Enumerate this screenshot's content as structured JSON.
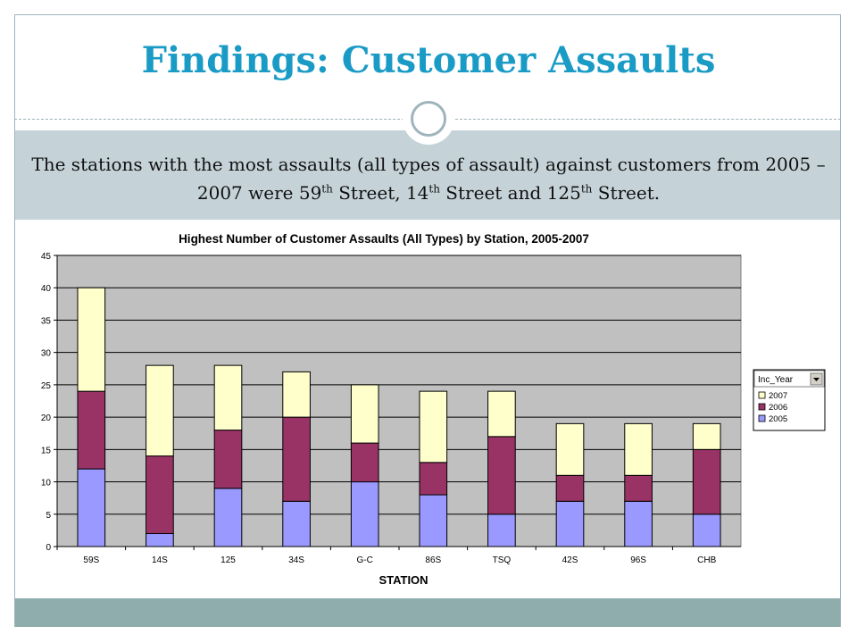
{
  "slide": {
    "title": "Findings: Customer Assaults",
    "subtitle_parts": [
      "The stations with the most assaults (all types of assault) against customers from 2005 – 2007 were 59",
      "th",
      " Street, 14",
      "th",
      " Street and 125",
      "th",
      " Street."
    ]
  },
  "colors": {
    "title": "#1a9bc6",
    "band": "#c5d3d8",
    "footer": "#8fadac",
    "plot_bg": "#c0c0c0",
    "s2005": "#9999ff",
    "s2006": "#993366",
    "s2007": "#ffffcc"
  },
  "chart_data": {
    "type": "bar",
    "stacked": true,
    "title": "Highest Number of Customer Assaults (All Types) by Station, 2005-2007",
    "xlabel": "STATION",
    "ylabel": "",
    "ylim": [
      0,
      45
    ],
    "yticks": [
      0,
      5,
      10,
      15,
      20,
      25,
      30,
      35,
      40,
      45
    ],
    "grid": true,
    "legend_position": "right",
    "legend_title": "Inc_Year",
    "categories": [
      "59S",
      "14S",
      "125",
      "34S",
      "G-C",
      "86S",
      "TSQ",
      "42S",
      "96S",
      "CHB"
    ],
    "series": [
      {
        "name": "2005",
        "values": [
          12,
          2,
          9,
          7,
          10,
          8,
          5,
          7,
          7,
          5
        ]
      },
      {
        "name": "2006",
        "values": [
          12,
          12,
          9,
          13,
          6,
          5,
          12,
          4,
          4,
          10
        ]
      },
      {
        "name": "2007",
        "values": [
          16,
          14,
          10,
          7,
          9,
          11,
          7,
          8,
          8,
          4
        ]
      }
    ]
  }
}
